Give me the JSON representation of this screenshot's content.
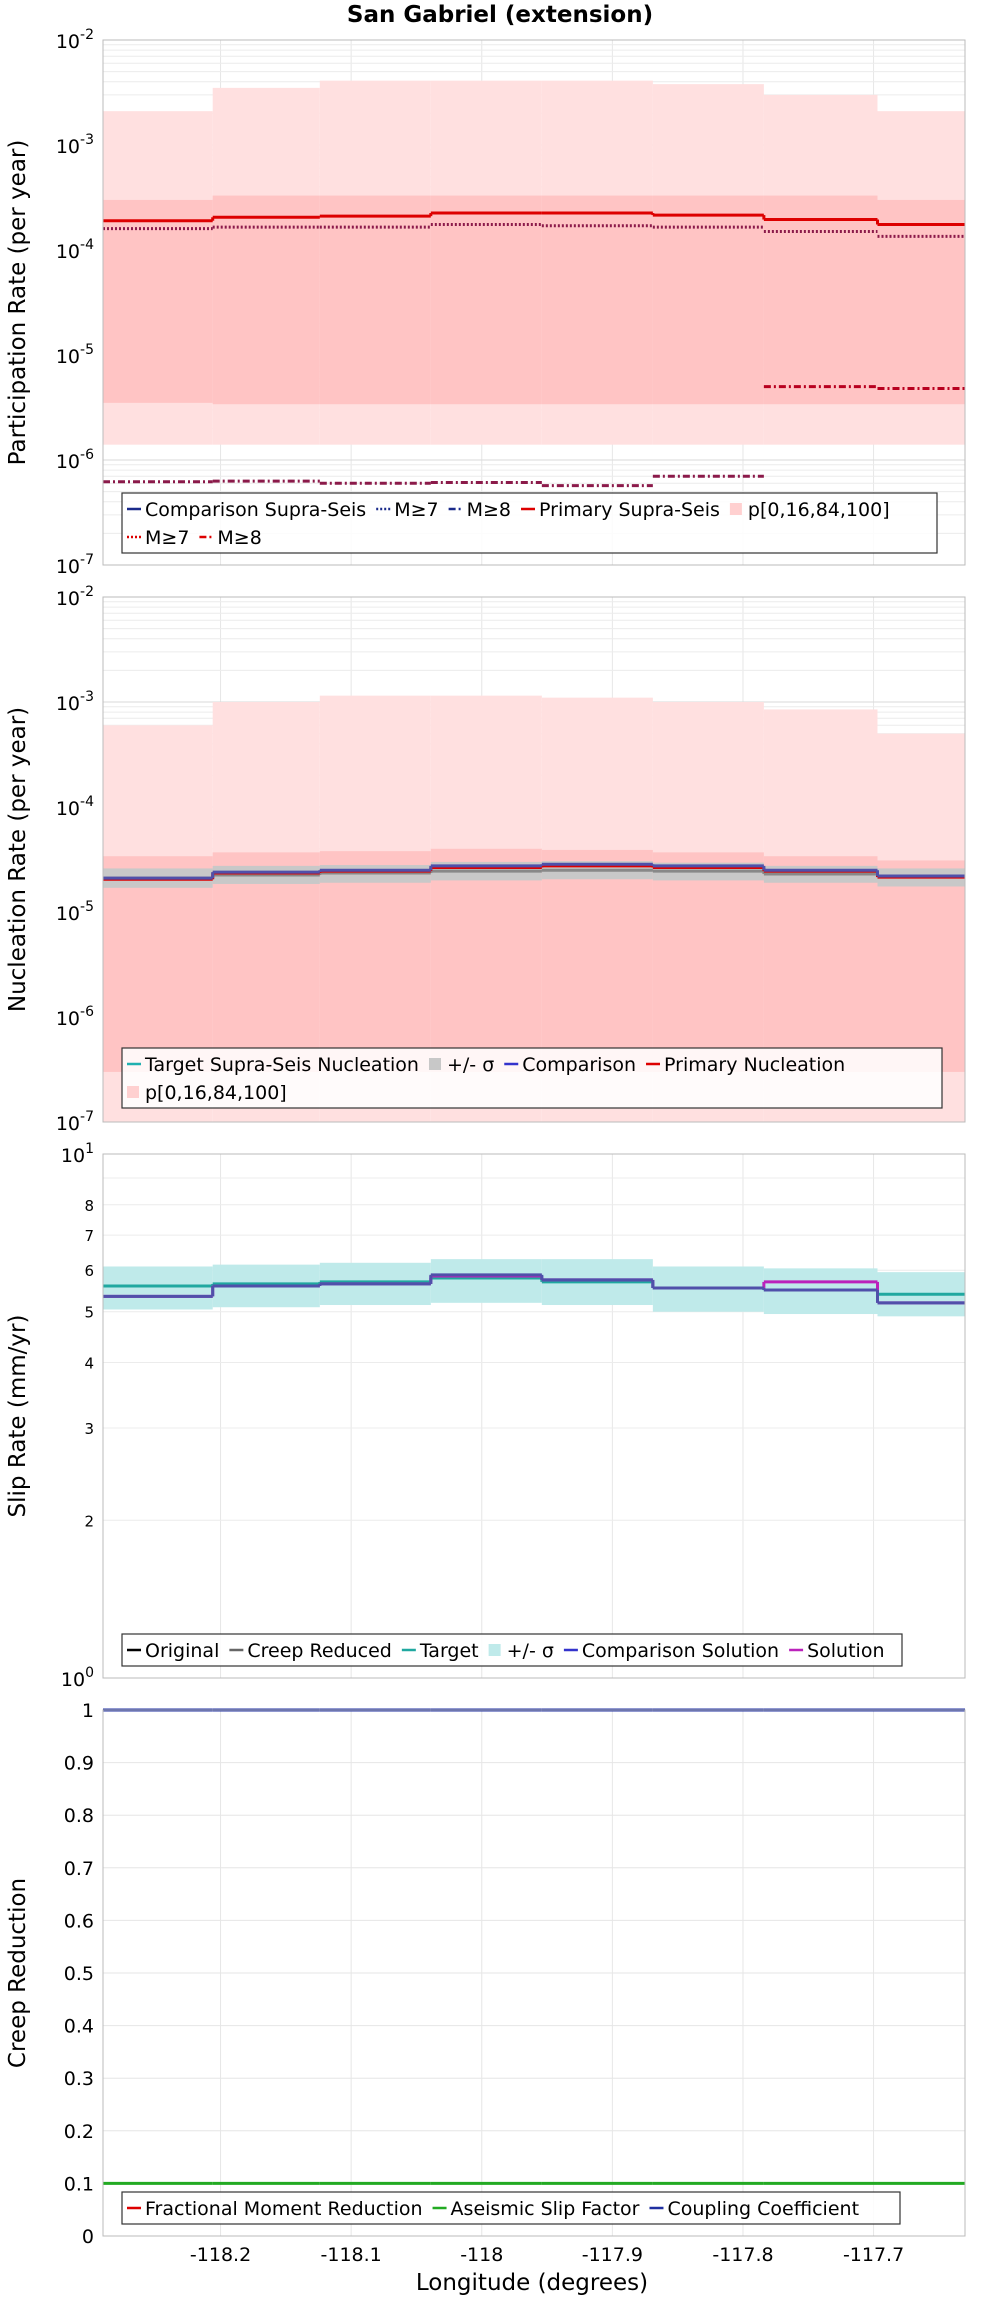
{
  "chart_data": {
    "title": "San Gabriel (extension)",
    "xlabel": "Longitude (degrees)",
    "xlim": [
      -118.29,
      -117.63
    ],
    "x_ticks": [
      -118.2,
      -118.1,
      -118.0,
      -117.9,
      -117.8,
      -117.7
    ],
    "x_tick_labels": [
      "-118.2",
      "-118.1",
      "-118",
      "-117.9",
      "-117.8",
      "-117.7"
    ],
    "bin_edges": [
      -118.29,
      -118.206,
      -118.124,
      -118.039,
      -117.954,
      -117.869,
      -117.784,
      -117.697,
      -117.63
    ],
    "panels": [
      {
        "type": "line",
        "ylabel": "Participation Rate (per year)",
        "yscale": "log",
        "ylim": [
          1e-07,
          0.01
        ],
        "grid": true,
        "legend_position": "bottom",
        "legend_rows": 2,
        "legend": [
          "Comparison Supra-Seis",
          "M≥7",
          "M≥8",
          "Primary Supra-Seis",
          "p[0,16,84,100]",
          "M≥7",
          "M≥8"
        ],
        "series": [
          {
            "name": "p[0,16,84,100]",
            "style": "band",
            "color": "#ffe0e0",
            "lower": [
              1.4e-06,
              1.4e-06,
              1.4e-06,
              1.4e-06,
              1.4e-06,
              1.4e-06,
              1.4e-06,
              1.4e-06
            ],
            "upper": [
              0.0021,
              0.0035,
              0.0041,
              0.0041,
              0.0041,
              0.0038,
              0.003,
              0.0021
            ]
          },
          {
            "name": "p[0,16,84,100]",
            "style": "band",
            "color": "#ffc4c4",
            "lower": [
              3.5e-06,
              3.4e-06,
              3.4e-06,
              3.4e-06,
              3.4e-06,
              3.4e-06,
              3.4e-06,
              3.4e-06
            ],
            "upper": [
              0.0003,
              0.00033,
              0.00033,
              0.00033,
              0.00033,
              0.00033,
              0.00033,
              0.0003
            ]
          },
          {
            "name": "Primary Supra-Seis",
            "style": "solid",
            "color": "#dd0000",
            "values": [
              0.00019,
              0.000205,
              0.00021,
              0.000225,
              0.000225,
              0.000215,
              0.000195,
              0.000175
            ]
          },
          {
            "name": "M≥7",
            "style": "dotted",
            "color": "#8b1a4a",
            "values": [
              0.00016,
              0.000165,
              0.000165,
              0.000175,
              0.00017,
              0.000165,
              0.00015,
              0.000135
            ]
          },
          {
            "name": "M≥8",
            "style": "dashdot",
            "color": "#b8001f",
            "values": [
              null,
              null,
              null,
              null,
              null,
              null,
              5e-06,
              4.8e-06
            ]
          },
          {
            "name": "M≥8",
            "style": "dashdot",
            "color": "#8b1a4a",
            "values": [
              6.2e-07,
              6.3e-07,
              6e-07,
              6.1e-07,
              5.7e-07,
              7e-07,
              null,
              null
            ]
          }
        ]
      },
      {
        "type": "line",
        "ylabel": "Nucleation Rate (per year)",
        "yscale": "log",
        "ylim": [
          1e-07,
          0.01
        ],
        "grid": true,
        "legend_position": "bottom",
        "legend_rows": 2,
        "legend": [
          "Target Supra-Seis Nucleation",
          "+/- σ",
          "Comparison",
          "Primary Nucleation",
          "p[0,16,84,100]"
        ],
        "series": [
          {
            "name": "p[0,16,84,100]",
            "style": "band",
            "color": "#ffe0e0",
            "lower": [
              1e-07,
              1e-07,
              1e-07,
              1e-07,
              1e-07,
              1e-07,
              1e-07,
              1e-07
            ],
            "upper": [
              0.0006,
              0.001,
              0.00115,
              0.00115,
              0.0011,
              0.001,
              0.00085,
              0.0005
            ]
          },
          {
            "name": "p[0,16,84,100]",
            "style": "band",
            "color": "#ffc4c4",
            "lower": [
              3e-07,
              3e-07,
              3e-07,
              3e-07,
              3e-07,
              3e-07,
              3e-07,
              3e-07
            ],
            "upper": [
              3.4e-05,
              3.7e-05,
              3.8e-05,
              4e-05,
              3.9e-05,
              3.7e-05,
              3.4e-05,
              3.1e-05
            ]
          },
          {
            "name": "+/- σ",
            "style": "band",
            "color": "#c8c8c8",
            "lower": [
              1.7e-05,
              1.85e-05,
              1.9e-05,
              2e-05,
              2.05e-05,
              2e-05,
              1.9e-05,
              1.75e-05
            ],
            "upper": [
              2.6e-05,
              2.75e-05,
              2.8e-05,
              3e-05,
              3.05e-05,
              2.95e-05,
              2.75e-05,
              2.6e-05
            ]
          },
          {
            "name": "Target Supra-Seis Nucleation",
            "style": "solid",
            "color": "#888888",
            "values": [
              2.1e-05,
              2.25e-05,
              2.35e-05,
              2.45e-05,
              2.5e-05,
              2.45e-05,
              2.3e-05,
              2.2e-05
            ]
          },
          {
            "name": "Primary Nucleation",
            "style": "solid",
            "color": "#dd0000",
            "values": [
              2.05e-05,
              2.35e-05,
              2.45e-05,
              2.65e-05,
              2.75e-05,
              2.65e-05,
              2.45e-05,
              2.15e-05
            ]
          },
          {
            "name": "Comparison",
            "style": "solid",
            "color": "#5050aa",
            "values": [
              2.1e-05,
              2.4e-05,
              2.5e-05,
              2.75e-05,
              2.85e-05,
              2.75e-05,
              2.5e-05,
              2.2e-05
            ]
          }
        ]
      },
      {
        "type": "line",
        "ylabel": "Slip Rate (mm/yr)",
        "yscale": "log",
        "ylim": [
          1,
          10
        ],
        "y_tick_labels_major": [
          "10^0",
          "10^1"
        ],
        "y_tick_labels_minor": [
          "2",
          "3",
          "4",
          "5",
          "6",
          "7",
          "8"
        ],
        "grid": true,
        "legend_position": "bottom",
        "legend_rows": 1,
        "legend": [
          "Original",
          "Creep Reduced",
          "Target",
          "+/- σ",
          "Comparison Solution",
          "Solution"
        ],
        "series": [
          {
            "name": "+/- σ",
            "style": "band",
            "color": "#bfeaea",
            "lower": [
              5.05,
              5.1,
              5.15,
              5.2,
              5.15,
              5.0,
              4.95,
              4.9
            ],
            "upper": [
              6.1,
              6.15,
              6.2,
              6.3,
              6.3,
              6.1,
              6.05,
              5.95
            ]
          },
          {
            "name": "Target",
            "style": "solid",
            "color": "#20a8a0",
            "values": [
              5.6,
              5.65,
              5.7,
              5.8,
              5.7,
              5.55,
              5.5,
              5.4
            ]
          },
          {
            "name": "Solution",
            "style": "solid",
            "color": "#bb22bb",
            "values": [
              5.35,
              5.6,
              5.65,
              5.85,
              5.75,
              5.55,
              5.7,
              5.2
            ]
          },
          {
            "name": "Comparison Solution",
            "style": "solid",
            "color": "#5050aa",
            "values": [
              5.35,
              5.6,
              5.65,
              5.88,
              5.75,
              5.55,
              5.5,
              5.2
            ]
          }
        ]
      },
      {
        "type": "line",
        "ylabel": "Creep Reduction",
        "yscale": "linear",
        "ylim": [
          0,
          1
        ],
        "y_ticks": [
          0,
          0.1,
          0.2,
          0.3,
          0.4,
          0.5,
          0.6,
          0.7,
          0.8,
          0.9,
          1
        ],
        "y_tick_labels": [
          "0",
          "0.1",
          "0.2",
          "0.3",
          "0.4",
          "0.5",
          "0.6",
          "0.7",
          "0.8",
          "0.9",
          "1"
        ],
        "grid": true,
        "legend_position": "bottom",
        "legend_rows": 1,
        "legend": [
          "Fractional Moment Reduction",
          "Aseismic Slip Factor",
          "Coupling Coefficient"
        ],
        "series": [
          {
            "name": "Coupling Coefficient",
            "style": "solid",
            "color": "#2030a0",
            "values": [
              1,
              1,
              1,
              1,
              1,
              1,
              1,
              1
            ]
          },
          {
            "name": "Aseismic Slip Factor",
            "style": "solid",
            "color": "#22aa22",
            "values": [
              0.1,
              0.1,
              0.1,
              0.1,
              0.1,
              0.1,
              0.1,
              0.1
            ]
          }
        ]
      }
    ],
    "legend_swatches": [
      [
        {
          "color": "#1a2a8a",
          "style": "solid"
        },
        {
          "color": "#1a2a8a",
          "style": "dotted"
        },
        {
          "color": "#1a2a8a",
          "style": "dashdot"
        },
        {
          "color": "#dd0000",
          "style": "solid"
        },
        {
          "color": "#ffd0d0",
          "style": "band"
        },
        {
          "color": "#dd0000",
          "style": "dotted"
        },
        {
          "color": "#dd0000",
          "style": "dashdot"
        }
      ],
      [
        {
          "color": "#20b0b0",
          "style": "solid"
        },
        {
          "color": "#c8c8c8",
          "style": "band"
        },
        {
          "color": "#3333cc",
          "style": "solid"
        },
        {
          "color": "#dd0000",
          "style": "solid"
        },
        {
          "color": "#ffd0d0",
          "style": "band"
        }
      ],
      [
        {
          "color": "#000000",
          "style": "solid"
        },
        {
          "color": "#666666",
          "style": "solid"
        },
        {
          "color": "#20a8a0",
          "style": "solid"
        },
        {
          "color": "#bfeaea",
          "style": "band"
        },
        {
          "color": "#3333cc",
          "style": "solid"
        },
        {
          "color": "#bb22bb",
          "style": "solid"
        }
      ],
      [
        {
          "color": "#dd0000",
          "style": "solid"
        },
        {
          "color": "#22aa22",
          "style": "solid"
        },
        {
          "color": "#2030a0",
          "style": "solid"
        }
      ]
    ]
  }
}
